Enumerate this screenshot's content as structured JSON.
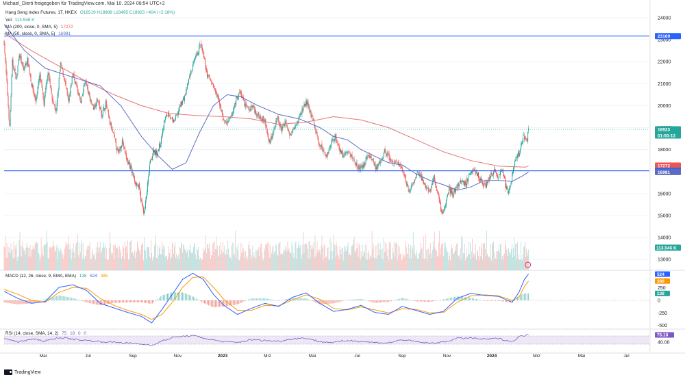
{
  "header": {
    "author_line": "Michael_Dierti freigegeben für TradingView.com, Mai 10, 2024 08:54 UTC+2"
  },
  "legend": {
    "title": "Hang Seng Index Futures, 1T, HKEX",
    "ohlc": {
      "O": "18519",
      "H": "18988",
      "L": "18495",
      "C": "18923",
      "chg": "+404 (+2.18%)"
    },
    "vol": {
      "label": "Vol",
      "value": "113.546 K"
    },
    "ma200": {
      "label": "MA (200, close, 0, SMA, 5)",
      "value": "17272"
    },
    "ma50": {
      "label": "MA (50, close, 0, SMA, 5)",
      "value": "16981"
    },
    "macd": {
      "label": "MACD (12, 26, close, 9, EMA, EMA)",
      "hist": "138",
      "macd": "524",
      "signal": "386"
    },
    "rsi": {
      "label": "RSI (14, close, SMA, 14, 2)",
      "v1": "75",
      "v2": "18",
      "v3": "0",
      "v4": "0"
    }
  },
  "colors": {
    "up": "#26a69a",
    "down": "#ef5350",
    "ma200": "#e57373",
    "ma50": "#5c6bc0",
    "hline": "#2962ff",
    "macd": "#2962ff",
    "signal": "#ff9800",
    "rsi": "#7e57c2",
    "rsi_band": "#ede7f6"
  },
  "footer": {
    "brand": "TradingView"
  },
  "chart_data": {
    "type": "candlestick",
    "price_axis": {
      "ticks": [
        24000,
        23000,
        22000,
        21000,
        20000,
        19000,
        18000,
        17000,
        16000,
        15000,
        14000,
        13000
      ],
      "range": [
        12600,
        24250
      ]
    },
    "time_axis": {
      "labels": [
        "Mai",
        "Jul",
        "Sep",
        "Nov",
        "2023",
        "Mrz",
        "Mai",
        "Jul",
        "Sep",
        "Nov",
        "2024",
        "Mrz",
        "Mai",
        "Jul"
      ]
    },
    "last_price": {
      "value": "18923",
      "countdown": "01:50:13"
    },
    "horizontal_lines": [
      23169,
      17037
    ],
    "price_badges": [
      {
        "label": "23169",
        "value": 23169,
        "role": "hline"
      },
      {
        "label": "18923",
        "value": 18923,
        "role": "last"
      },
      {
        "label": "17272",
        "value": 17272,
        "role": "ma200"
      },
      {
        "label": "17037",
        "value": 17037,
        "role": "hline"
      },
      {
        "label": "16981",
        "value": 16981,
        "role": "ma50"
      }
    ],
    "volume_badge": "113.546 K",
    "price_path": [
      [
        0,
        22900
      ],
      [
        4,
        21000
      ],
      [
        8,
        19000
      ],
      [
        12,
        22000
      ],
      [
        18,
        21200
      ],
      [
        22,
        22400
      ],
      [
        28,
        21600
      ],
      [
        34,
        22100
      ],
      [
        40,
        21000
      ],
      [
        46,
        20200
      ],
      [
        52,
        21400
      ],
      [
        58,
        20100
      ],
      [
        64,
        21600
      ],
      [
        70,
        20300
      ],
      [
        76,
        19700
      ],
      [
        82,
        21900
      ],
      [
        88,
        21200
      ],
      [
        94,
        20100
      ],
      [
        100,
        21500
      ],
      [
        106,
        20800
      ],
      [
        112,
        20100
      ],
      [
        118,
        21200
      ],
      [
        124,
        20400
      ],
      [
        130,
        19900
      ],
      [
        136,
        20300
      ],
      [
        142,
        19600
      ],
      [
        148,
        20100
      ],
      [
        154,
        19200
      ],
      [
        160,
        18600
      ],
      [
        166,
        17800
      ],
      [
        172,
        18400
      ],
      [
        178,
        17600
      ],
      [
        184,
        17200
      ],
      [
        190,
        16600
      ],
      [
        196,
        16300
      ],
      [
        200,
        15600
      ],
      [
        204,
        15100
      ],
      [
        208,
        16100
      ],
      [
        212,
        17300
      ],
      [
        218,
        18000
      ],
      [
        222,
        17800
      ],
      [
        228,
        18300
      ],
      [
        234,
        19400
      ],
      [
        240,
        19700
      ],
      [
        246,
        19200
      ],
      [
        252,
        19600
      ],
      [
        258,
        20100
      ],
      [
        264,
        20500
      ],
      [
        270,
        21300
      ],
      [
        276,
        21900
      ],
      [
        282,
        22400
      ],
      [
        286,
        22800
      ],
      [
        290,
        22300
      ],
      [
        296,
        21400
      ],
      [
        302,
        21100
      ],
      [
        308,
        20600
      ],
      [
        314,
        20100
      ],
      [
        320,
        19300
      ],
      [
        326,
        19200
      ],
      [
        332,
        19600
      ],
      [
        338,
        20300
      ],
      [
        344,
        20600
      ],
      [
        350,
        20100
      ],
      [
        356,
        19800
      ],
      [
        362,
        20000
      ],
      [
        368,
        19600
      ],
      [
        374,
        19500
      ],
      [
        380,
        19300
      ],
      [
        386,
        18300
      ],
      [
        392,
        18800
      ],
      [
        398,
        19400
      ],
      [
        404,
        18900
      ],
      [
        410,
        19300
      ],
      [
        416,
        18600
      ],
      [
        422,
        19100
      ],
      [
        428,
        19300
      ],
      [
        434,
        19800
      ],
      [
        440,
        20200
      ],
      [
        446,
        19700
      ],
      [
        452,
        19100
      ],
      [
        458,
        18300
      ],
      [
        464,
        18000
      ],
      [
        470,
        17700
      ],
      [
        476,
        18300
      ],
      [
        482,
        18600
      ],
      [
        488,
        18100
      ],
      [
        494,
        17700
      ],
      [
        500,
        17900
      ],
      [
        506,
        17700
      ],
      [
        512,
        17400
      ],
      [
        518,
        17100
      ],
      [
        524,
        17300
      ],
      [
        530,
        17800
      ],
      [
        536,
        17600
      ],
      [
        542,
        17100
      ],
      [
        548,
        17400
      ],
      [
        554,
        17900
      ],
      [
        560,
        17700
      ],
      [
        566,
        17300
      ],
      [
        572,
        17500
      ],
      [
        578,
        17100
      ],
      [
        584,
        16700
      ],
      [
        590,
        16100
      ],
      [
        596,
        16400
      ],
      [
        602,
        17000
      ],
      [
        608,
        16700
      ],
      [
        614,
        16300
      ],
      [
        620,
        16100
      ],
      [
        626,
        16700
      ],
      [
        632,
        16000
      ],
      [
        636,
        15300
      ],
      [
        640,
        15100
      ],
      [
        644,
        15800
      ],
      [
        648,
        16200
      ],
      [
        654,
        16000
      ],
      [
        660,
        16300
      ],
      [
        666,
        16600
      ],
      [
        672,
        16400
      ],
      [
        678,
        16900
      ],
      [
        684,
        17200
      ],
      [
        690,
        16800
      ],
      [
        696,
        16500
      ],
      [
        702,
        16400
      ],
      [
        708,
        16800
      ],
      [
        714,
        17000
      ],
      [
        720,
        16700
      ],
      [
        726,
        17100
      ],
      [
        730,
        16400
      ],
      [
        734,
        16100
      ],
      [
        738,
        16400
      ],
      [
        742,
        17200
      ],
      [
        746,
        17600
      ],
      [
        750,
        17800
      ],
      [
        754,
        18300
      ],
      [
        758,
        18600
      ],
      [
        762,
        18500
      ],
      [
        764,
        18923
      ]
    ],
    "ma200_path": [
      [
        0,
        23300
      ],
      [
        40,
        22500
      ],
      [
        80,
        21800
      ],
      [
        120,
        21100
      ],
      [
        160,
        20500
      ],
      [
        200,
        20000
      ],
      [
        240,
        19650
      ],
      [
        280,
        19550
      ],
      [
        320,
        19500
      ],
      [
        360,
        19400
      ],
      [
        400,
        19150
      ],
      [
        440,
        19250
      ],
      [
        480,
        19500
      ],
      [
        520,
        19350
      ],
      [
        560,
        19000
      ],
      [
        600,
        18450
      ],
      [
        640,
        17900
      ],
      [
        680,
        17500
      ],
      [
        720,
        17250
      ],
      [
        760,
        17200
      ],
      [
        764,
        17272
      ]
    ],
    "ma50_path": [
      [
        0,
        23700
      ],
      [
        30,
        22500
      ],
      [
        60,
        21700
      ],
      [
        100,
        21300
      ],
      [
        140,
        20900
      ],
      [
        170,
        20000
      ],
      [
        200,
        18600
      ],
      [
        225,
        17700
      ],
      [
        245,
        17100
      ],
      [
        265,
        17400
      ],
      [
        285,
        18800
      ],
      [
        305,
        20000
      ],
      [
        325,
        20500
      ],
      [
        345,
        20400
      ],
      [
        370,
        20000
      ],
      [
        400,
        19600
      ],
      [
        430,
        19400
      ],
      [
        460,
        19000
      ],
      [
        480,
        18600
      ],
      [
        500,
        18450
      ],
      [
        520,
        18000
      ],
      [
        540,
        17700
      ],
      [
        560,
        17400
      ],
      [
        580,
        17300
      ],
      [
        600,
        16900
      ],
      [
        620,
        16600
      ],
      [
        640,
        16400
      ],
      [
        660,
        16150
      ],
      [
        680,
        16300
      ],
      [
        700,
        16600
      ],
      [
        720,
        16600
      ],
      [
        740,
        16550
      ],
      [
        755,
        16800
      ],
      [
        764,
        16981
      ]
    ],
    "volume_axis": {
      "range": [
        0,
        320
      ]
    },
    "macd_axis": {
      "ticks": [
        524,
        386,
        250,
        138,
        0,
        -250,
        -500
      ],
      "tick_labels": [
        "524",
        "386",
        "250",
        "138",
        "0",
        "-250",
        "-500"
      ],
      "range": [
        -560,
        560
      ]
    },
    "macd_path": [
      [
        0,
        180
      ],
      [
        20,
        40
      ],
      [
        40,
        -60
      ],
      [
        60,
        -20
      ],
      [
        80,
        260
      ],
      [
        100,
        310
      ],
      [
        120,
        200
      ],
      [
        140,
        -60
      ],
      [
        160,
        -150
      ],
      [
        180,
        -240
      ],
      [
        200,
        -320
      ],
      [
        215,
        -450
      ],
      [
        230,
        -180
      ],
      [
        245,
        120
      ],
      [
        260,
        420
      ],
      [
        275,
        540
      ],
      [
        290,
        420
      ],
      [
        305,
        120
      ],
      [
        320,
        -100
      ],
      [
        340,
        -280
      ],
      [
        360,
        -160
      ],
      [
        380,
        -60
      ],
      [
        400,
        -120
      ],
      [
        420,
        60
      ],
      [
        440,
        150
      ],
      [
        460,
        -60
      ],
      [
        480,
        -220
      ],
      [
        500,
        -180
      ],
      [
        520,
        -100
      ],
      [
        540,
        -240
      ],
      [
        560,
        -280
      ],
      [
        580,
        -120
      ],
      [
        600,
        -200
      ],
      [
        620,
        -280
      ],
      [
        640,
        -220
      ],
      [
        660,
        40
      ],
      [
        680,
        140
      ],
      [
        700,
        100
      ],
      [
        720,
        80
      ],
      [
        740,
        -40
      ],
      [
        750,
        160
      ],
      [
        758,
        420
      ],
      [
        764,
        524
      ]
    ],
    "signal_path": [
      [
        0,
        220
      ],
      [
        20,
        120
      ],
      [
        40,
        0
      ],
      [
        60,
        -40
      ],
      [
        80,
        160
      ],
      [
        100,
        260
      ],
      [
        120,
        240
      ],
      [
        140,
        40
      ],
      [
        160,
        -100
      ],
      [
        180,
        -200
      ],
      [
        200,
        -280
      ],
      [
        215,
        -380
      ],
      [
        230,
        -280
      ],
      [
        245,
        -40
      ],
      [
        260,
        260
      ],
      [
        275,
        460
      ],
      [
        290,
        470
      ],
      [
        305,
        260
      ],
      [
        320,
        20
      ],
      [
        340,
        -200
      ],
      [
        360,
        -200
      ],
      [
        380,
        -100
      ],
      [
        400,
        -110
      ],
      [
        420,
        10
      ],
      [
        440,
        110
      ],
      [
        460,
        20
      ],
      [
        480,
        -160
      ],
      [
        500,
        -190
      ],
      [
        520,
        -130
      ],
      [
        540,
        -190
      ],
      [
        560,
        -250
      ],
      [
        580,
        -170
      ],
      [
        600,
        -180
      ],
      [
        620,
        -250
      ],
      [
        640,
        -240
      ],
      [
        660,
        -40
      ],
      [
        680,
        90
      ],
      [
        700,
        110
      ],
      [
        720,
        90
      ],
      [
        740,
        0
      ],
      [
        750,
        60
      ],
      [
        758,
        280
      ],
      [
        764,
        386
      ]
    ],
    "rsi_axis": {
      "ticks": [
        75.18,
        40.0
      ],
      "tick_labels": [
        "75.18",
        "40.00"
      ],
      "band": [
        30,
        70
      ],
      "range": [
        0,
        100
      ]
    },
    "rsi_path": [
      [
        0,
        60
      ],
      [
        20,
        40
      ],
      [
        40,
        55
      ],
      [
        60,
        45
      ],
      [
        80,
        62
      ],
      [
        100,
        55
      ],
      [
        120,
        48
      ],
      [
        140,
        42
      ],
      [
        160,
        40
      ],
      [
        180,
        35
      ],
      [
        200,
        30
      ],
      [
        215,
        25
      ],
      [
        230,
        45
      ],
      [
        245,
        62
      ],
      [
        260,
        68
      ],
      [
        275,
        72
      ],
      [
        290,
        60
      ],
      [
        305,
        50
      ],
      [
        320,
        42
      ],
      [
        340,
        38
      ],
      [
        360,
        52
      ],
      [
        380,
        48
      ],
      [
        400,
        44
      ],
      [
        420,
        56
      ],
      [
        440,
        60
      ],
      [
        460,
        42
      ],
      [
        480,
        38
      ],
      [
        500,
        48
      ],
      [
        520,
        44
      ],
      [
        540,
        38
      ],
      [
        560,
        36
      ],
      [
        580,
        52
      ],
      [
        600,
        42
      ],
      [
        620,
        34
      ],
      [
        640,
        40
      ],
      [
        660,
        58
      ],
      [
        680,
        60
      ],
      [
        700,
        54
      ],
      [
        720,
        58
      ],
      [
        740,
        42
      ],
      [
        750,
        66
      ],
      [
        758,
        72
      ],
      [
        764,
        75.18
      ]
    ]
  }
}
